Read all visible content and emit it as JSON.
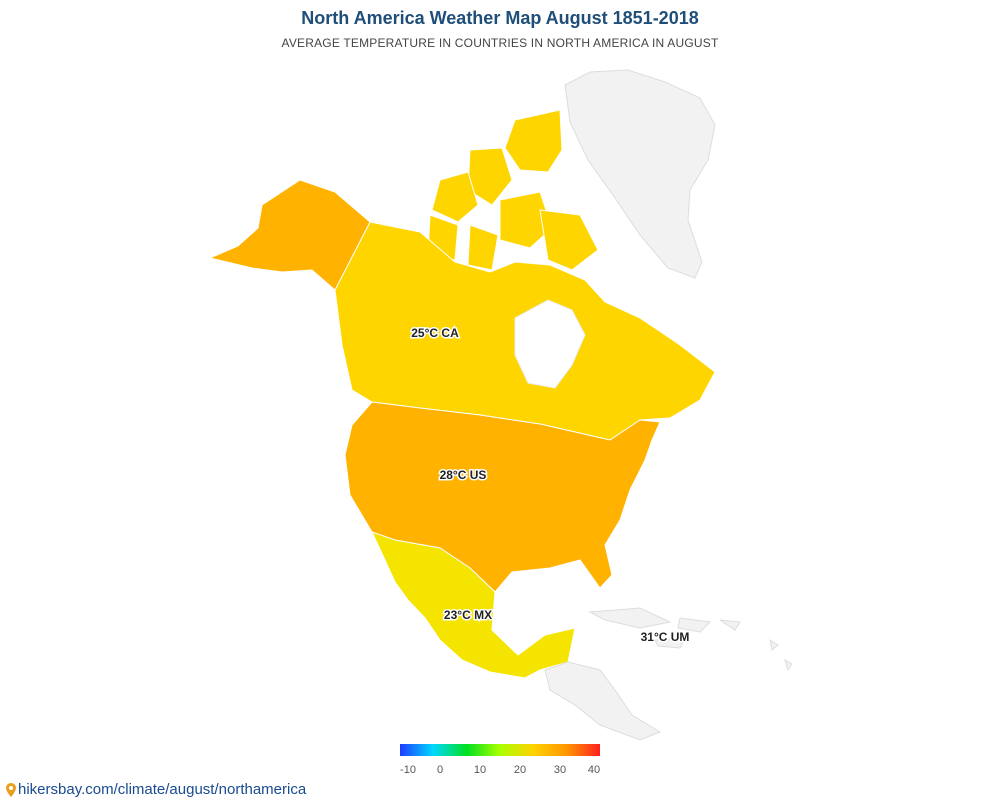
{
  "header": {
    "title": "North America Weather Map August 1851-2018",
    "subtitle": "AVERAGE TEMPERATURE IN COUNTRIES IN NORTH AMERICA IN AUGUST"
  },
  "map": {
    "regions": [
      {
        "id": "CA",
        "label": "25°C CA",
        "temperature_c": 25,
        "color": "#ffd500"
      },
      {
        "id": "US",
        "label": "28°C US",
        "temperature_c": 28,
        "color": "#ffb300"
      },
      {
        "id": "MX",
        "label": "23°C MX",
        "temperature_c": 23,
        "color": "#f5e400"
      },
      {
        "id": "AK",
        "temperature_c": 28,
        "color": "#ffb300"
      },
      {
        "id": "UM",
        "label": "31°C UM",
        "temperature_c": 31,
        "color": "#f2f2f2"
      },
      {
        "id": "GL",
        "color": "#f2f2f2"
      },
      {
        "id": "CentralAmerica",
        "color": "#f2f2f2"
      }
    ]
  },
  "legend": {
    "ticks": [
      "-10",
      "0",
      "10",
      "20",
      "30",
      "40"
    ],
    "colors": [
      "#1e3cff",
      "#00d8ff",
      "#00e020",
      "#aaff00",
      "#ffd200",
      "#ff9600",
      "#ff2020"
    ]
  },
  "footer": {
    "source_link": "hikersbay.com/climate/august/northamerica"
  }
}
